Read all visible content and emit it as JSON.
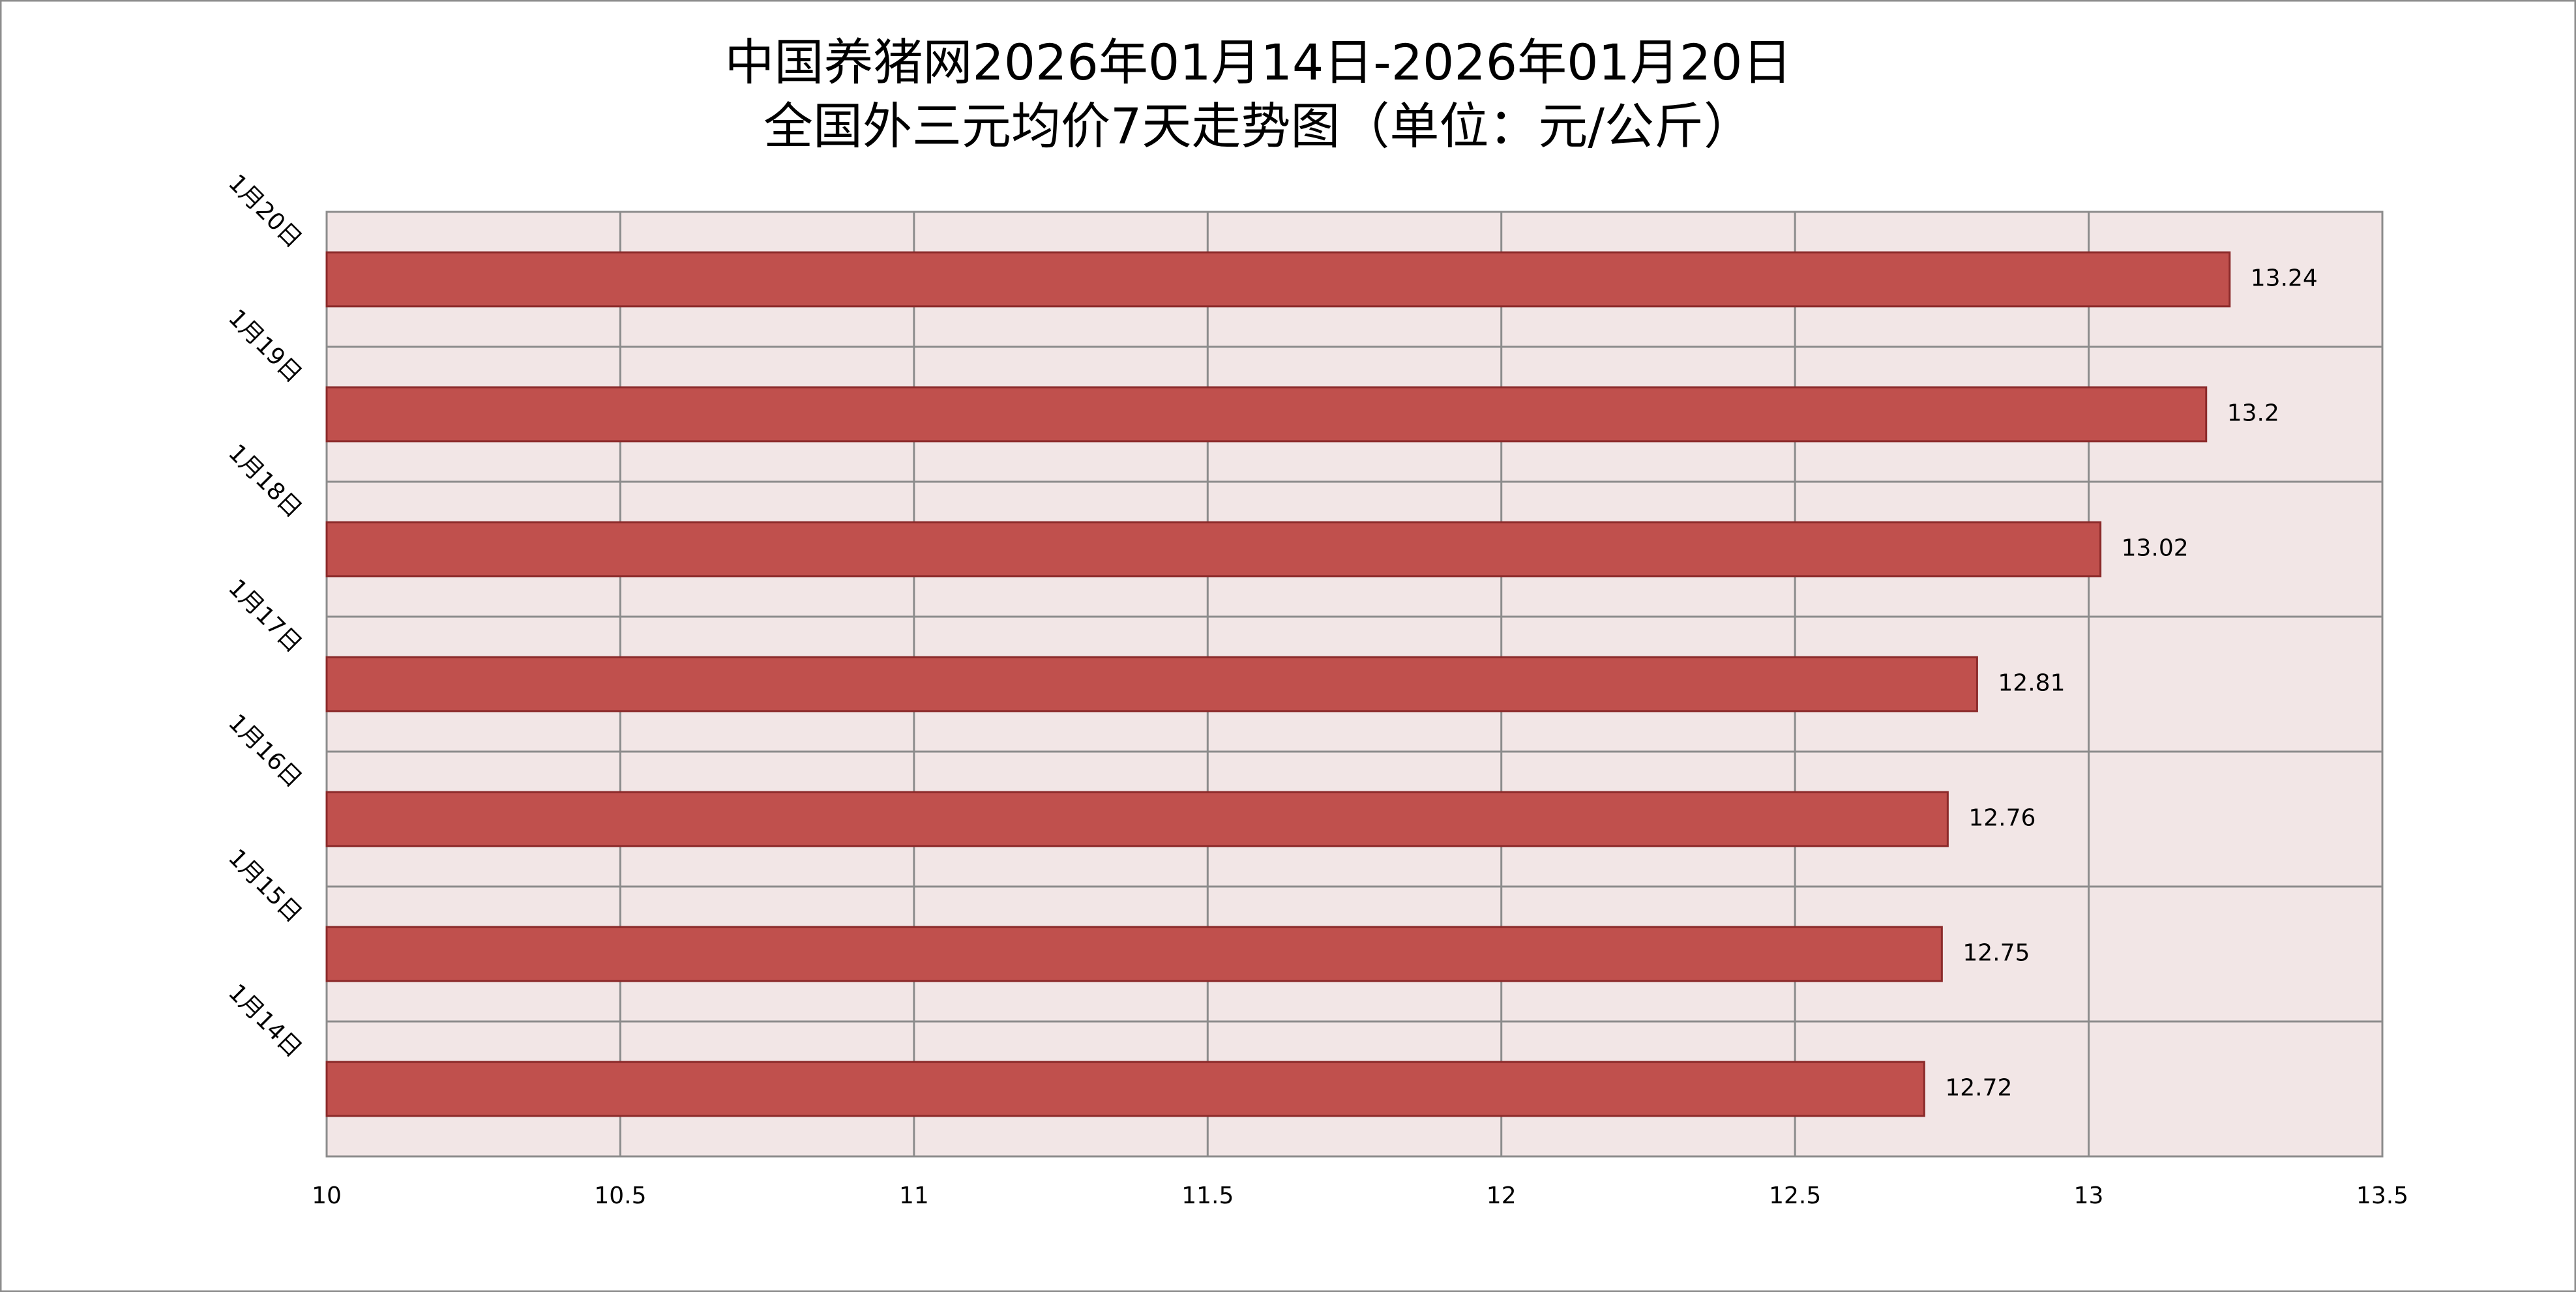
{
  "chart_data": {
    "type": "bar",
    "orientation": "horizontal",
    "title_lines": [
      "中国养猪网2026年01月14日-2026年01月20日",
      "全国外三元均价7天走势图（单位：元/公斤）"
    ],
    "categories": [
      "1月20日",
      "1月19日",
      "1月18日",
      "1月17日",
      "1月16日",
      "1月15日",
      "1月14日"
    ],
    "values": [
      13.24,
      13.2,
      13.02,
      12.81,
      12.76,
      12.75,
      12.72
    ],
    "color": "#c0504d",
    "xlim": [
      10,
      13.5
    ],
    "xticks": [
      10,
      10.5,
      11,
      11.5,
      12,
      12.5,
      13,
      13.5
    ],
    "grid": true
  }
}
